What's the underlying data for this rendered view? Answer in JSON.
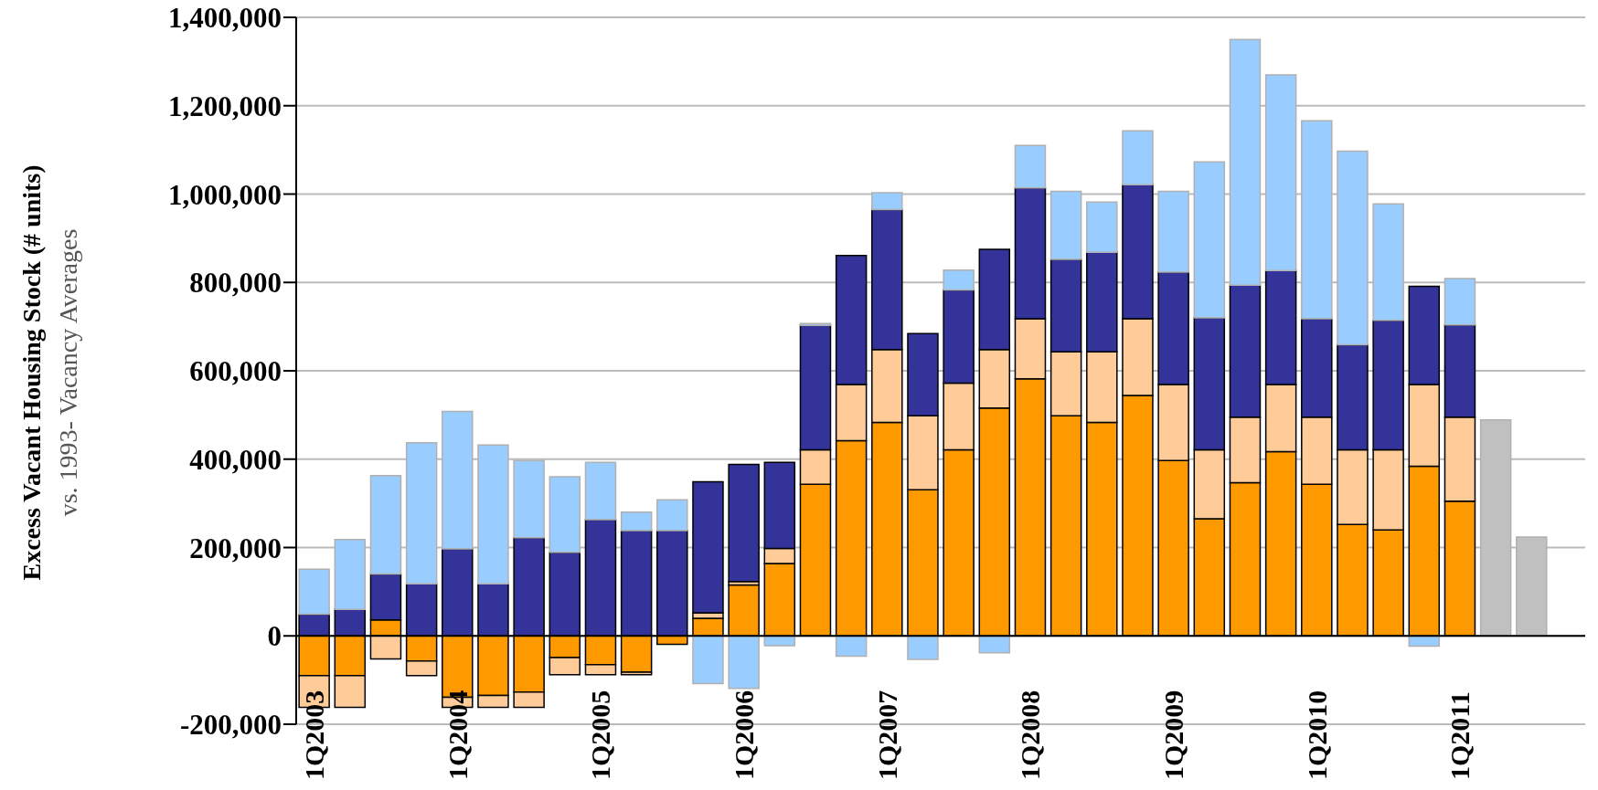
{
  "chart_data": {
    "type": "bar",
    "stacked": true,
    "ylabel": "Excess Vacant Housing Stock (# units)\nvs. 1993- Vacancy Averages",
    "categories": [
      "1Q2003",
      null,
      null,
      null,
      "1Q2004",
      null,
      null,
      null,
      "1Q2005",
      null,
      null,
      null,
      "1Q2006",
      null,
      null,
      null,
      "1Q2007",
      null,
      null,
      null,
      "1Q2008",
      null,
      null,
      null,
      "1Q2009",
      null,
      null,
      null,
      "1Q2010",
      null,
      null,
      null,
      "1Q2011",
      null,
      null,
      null
    ],
    "series": [
      {
        "color": "#ff9900",
        "values": [
          -90000,
          -90000,
          36000,
          -57000,
          -139000,
          -135000,
          -127000,
          -49000,
          -65000,
          -82000,
          -19000,
          40000,
          115000,
          164000,
          343000,
          442000,
          483000,
          331000,
          421000,
          516000,
          582000,
          498000,
          483000,
          544000,
          397000,
          265000,
          347000,
          417000,
          343000,
          252000,
          240000,
          384000,
          305000,
          null,
          null,
          null
        ]
      },
      {
        "color": "#ffcc99",
        "values": [
          -72000,
          -72000,
          -52000,
          -33000,
          -23000,
          -27000,
          -35000,
          -39000,
          -23000,
          -6000,
          null,
          12000,
          8000,
          34000,
          78000,
          127000,
          165000,
          167000,
          151000,
          132000,
          136000,
          145000,
          160000,
          174000,
          172000,
          156000,
          148000,
          152000,
          152000,
          169000,
          181000,
          185000,
          190000,
          null,
          null,
          null
        ]
      },
      {
        "color": "#333399",
        "values": [
          49000,
          60000,
          104000,
          118000,
          197000,
          118000,
          222000,
          189000,
          263000,
          238000,
          238000,
          297000,
          265000,
          195000,
          282000,
          292000,
          317000,
          186000,
          211000,
          227000,
          296000,
          209000,
          225000,
          303000,
          254000,
          299000,
          299000,
          258000,
          223000,
          238000,
          293000,
          222000,
          209000,
          null,
          null,
          null
        ]
      },
      {
        "color": "#99ccff",
        "values": [
          102000,
          158000,
          223000,
          319000,
          311000,
          314000,
          175000,
          171000,
          130000,
          42000,
          70000,
          -108000,
          -119000,
          -22000,
          4000,
          -46000,
          38000,
          -53000,
          45000,
          -38000,
          96000,
          154000,
          114000,
          122000,
          183000,
          353000,
          556000,
          443000,
          448000,
          438000,
          264000,
          -23000,
          105000,
          null,
          null,
          null
        ]
      },
      {
        "color": "#c0c0c0",
        "values": [
          null,
          null,
          null,
          null,
          null,
          null,
          null,
          null,
          null,
          null,
          null,
          null,
          null,
          null,
          null,
          null,
          null,
          null,
          null,
          null,
          null,
          null,
          null,
          null,
          null,
          null,
          null,
          null,
          null,
          null,
          null,
          null,
          null,
          489000,
          224000,
          null
        ]
      }
    ],
    "ylim": [
      -200000,
      1400000
    ],
    "yticks": [
      {
        "value": -200000,
        "label": "-200,000"
      },
      0,
      {
        "value": 200000,
        "label": "200,000"
      },
      {
        "value": 400000,
        "label": "400,000"
      },
      {
        "value": 600000,
        "label": "600,000"
      },
      {
        "value": 800000,
        "label": "800,000"
      },
      {
        "value": 1000000,
        "label": "1,000,000"
      },
      {
        "value": 1200000,
        "label": "1,200,000"
      },
      {
        "value": 1400000,
        "label": "1,400,000"
      }
    ],
    "grid": "y"
  }
}
